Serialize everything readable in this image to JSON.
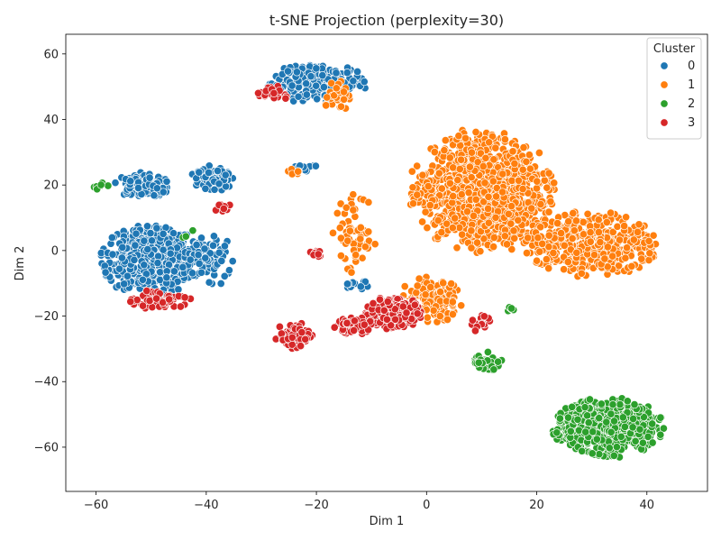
{
  "chart_data": {
    "type": "scatter",
    "title": "t-SNE Projection (perplexity=30)",
    "xlabel": "Dim 1",
    "ylabel": "Dim 2",
    "xlim": [
      -65.5,
      51
    ],
    "ylim": [
      -73.5,
      66
    ],
    "xticks": [
      -60,
      -40,
      -20,
      0,
      20,
      40
    ],
    "yticks": [
      -60,
      -40,
      -20,
      0,
      20,
      40,
      60
    ],
    "xtick_labels": [
      "−60",
      "−40",
      "−20",
      "0",
      "20",
      "40"
    ],
    "ytick_labels": [
      "−60",
      "−40",
      "−20",
      "0",
      "20",
      "40",
      "60"
    ],
    "grid": false,
    "legend": {
      "title": "Cluster",
      "placement": "top-right"
    },
    "series": [
      {
        "name": "0",
        "color": "#1f77b4",
        "clusters": [
          {
            "cx": -50,
            "cy": -3,
            "rx": 9.5,
            "ry": 11,
            "n": 520
          },
          {
            "cx": -51.5,
            "cy": 20,
            "rx": 5,
            "ry": 4,
            "n": 130
          },
          {
            "cx": -39,
            "cy": 22,
            "rx": 4,
            "ry": 4,
            "n": 60
          },
          {
            "cx": -39,
            "cy": -3,
            "rx": 4,
            "ry": 8,
            "n": 70
          },
          {
            "cx": -20,
            "cy": 51,
            "rx": 9,
            "ry": 6,
            "n": 210
          },
          {
            "cx": -22,
            "cy": 25,
            "rx": 3,
            "ry": 1.5,
            "n": 12
          },
          {
            "cx": -13,
            "cy": -10,
            "rx": 2.5,
            "ry": 2.5,
            "n": 12
          }
        ]
      },
      {
        "name": "1",
        "color": "#ff7f0e",
        "clusters": [
          {
            "cx": 10,
            "cy": 18,
            "rx": 13,
            "ry": 19,
            "n": 900
          },
          {
            "cx": 30,
            "cy": 2,
            "rx": 12,
            "ry": 10,
            "n": 420
          },
          {
            "cx": 1,
            "cy": -15,
            "rx": 6,
            "ry": 7,
            "n": 130
          },
          {
            "cx": -13,
            "cy": 5,
            "rx": 4,
            "ry": 12,
            "n": 60
          },
          {
            "cx": -16,
            "cy": 47,
            "rx": 3,
            "ry": 5,
            "n": 30
          },
          {
            "cx": -24,
            "cy": 24,
            "rx": 1.5,
            "ry": 1.5,
            "n": 8
          }
        ]
      },
      {
        "name": "2",
        "color": "#2ca02c",
        "clusters": [
          {
            "cx": 33,
            "cy": -54,
            "rx": 10,
            "ry": 9,
            "n": 540
          },
          {
            "cx": 11,
            "cy": -34,
            "rx": 3,
            "ry": 3,
            "n": 45
          },
          {
            "cx": -59,
            "cy": 19.5,
            "rx": 1.5,
            "ry": 1.5,
            "n": 8
          },
          {
            "cx": 15,
            "cy": -18,
            "rx": 1.5,
            "ry": 1,
            "n": 5
          },
          {
            "cx": -43,
            "cy": 5,
            "rx": 2,
            "ry": 2,
            "n": 3
          }
        ]
      },
      {
        "name": "3",
        "color": "#d62728",
        "clusters": [
          {
            "cx": -6,
            "cy": -19,
            "rx": 5,
            "ry": 5,
            "n": 300
          },
          {
            "cx": -13,
            "cy": -23,
            "rx": 4,
            "ry": 2.5,
            "n": 70
          },
          {
            "cx": -24,
            "cy": -26,
            "rx": 3.5,
            "ry": 4,
            "n": 70
          },
          {
            "cx": -48,
            "cy": -15,
            "rx": 6,
            "ry": 3,
            "n": 70
          },
          {
            "cx": -28,
            "cy": 48,
            "rx": 3,
            "ry": 2.5,
            "n": 22
          },
          {
            "cx": -20,
            "cy": -1,
            "rx": 1.5,
            "ry": 1,
            "n": 12
          },
          {
            "cx": -37,
            "cy": 13,
            "rx": 1.5,
            "ry": 3,
            "n": 10
          },
          {
            "cx": 10,
            "cy": -22,
            "rx": 2,
            "ry": 3,
            "n": 15
          }
        ]
      }
    ]
  }
}
